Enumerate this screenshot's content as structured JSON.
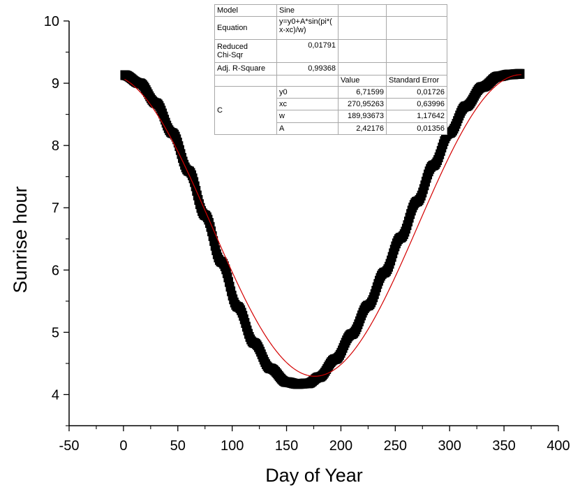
{
  "chart_data": {
    "type": "scatter",
    "xlabel": "Day of Year",
    "ylabel": "Sunrise hour",
    "xlim": [
      -50,
      400
    ],
    "ylim": [
      3.5,
      10
    ],
    "x_ticks": [
      -50,
      0,
      50,
      100,
      150,
      200,
      250,
      300,
      350,
      400
    ],
    "y_ticks": [
      4,
      5,
      6,
      7,
      8,
      9,
      10
    ],
    "series": [
      {
        "kind": "data",
        "color": "#000000",
        "x": [
          1,
          15,
          30,
          45,
          60,
          75,
          90,
          105,
          120,
          135,
          150,
          160,
          170,
          180,
          195,
          210,
          225,
          240,
          255,
          270,
          285,
          300,
          315,
          330,
          345,
          355,
          365
        ],
        "y": [
          9.13,
          9.0,
          8.68,
          8.2,
          7.59,
          6.88,
          6.13,
          5.41,
          4.83,
          4.42,
          4.2,
          4.17,
          4.18,
          4.28,
          4.57,
          4.97,
          5.43,
          5.96,
          6.52,
          7.1,
          7.68,
          8.2,
          8.63,
          8.94,
          9.11,
          9.14,
          9.15
        ]
      },
      {
        "kind": "fit",
        "color": "#d40000",
        "model": "y=y0+A*sin(pi*(x-xc)/w)",
        "params": {
          "y0": 6.71599,
          "xc": 270.95263,
          "w": 189.93673,
          "A": 2.42176
        },
        "x_range": [
          1,
          366
        ]
      }
    ],
    "grid": false,
    "fit_table": {
      "model_label": "Model",
      "model_value": "Sine",
      "equation_label": "Equation",
      "equation_line1": "y=y0+A*sin(pi*(",
      "equation_line2": "x-xc)/w)",
      "chi_label_line1": "Reduced",
      "chi_label_line2": "Chi-Sqr",
      "chi_value": "0,01791",
      "adj_label": "Adj. R-Square",
      "adj_value": "0,99368",
      "value_header": "Value",
      "error_header": "Standard Error",
      "group_label": "C",
      "params": [
        {
          "name": "y0",
          "value": "6,71599",
          "error": "0,01726"
        },
        {
          "name": "xc",
          "value": "270,95263",
          "error": "0,63996"
        },
        {
          "name": "w",
          "value": "189,93673",
          "error": "1,17642"
        },
        {
          "name": "A",
          "value": "2,42176",
          "error": "0,01356"
        }
      ]
    }
  }
}
